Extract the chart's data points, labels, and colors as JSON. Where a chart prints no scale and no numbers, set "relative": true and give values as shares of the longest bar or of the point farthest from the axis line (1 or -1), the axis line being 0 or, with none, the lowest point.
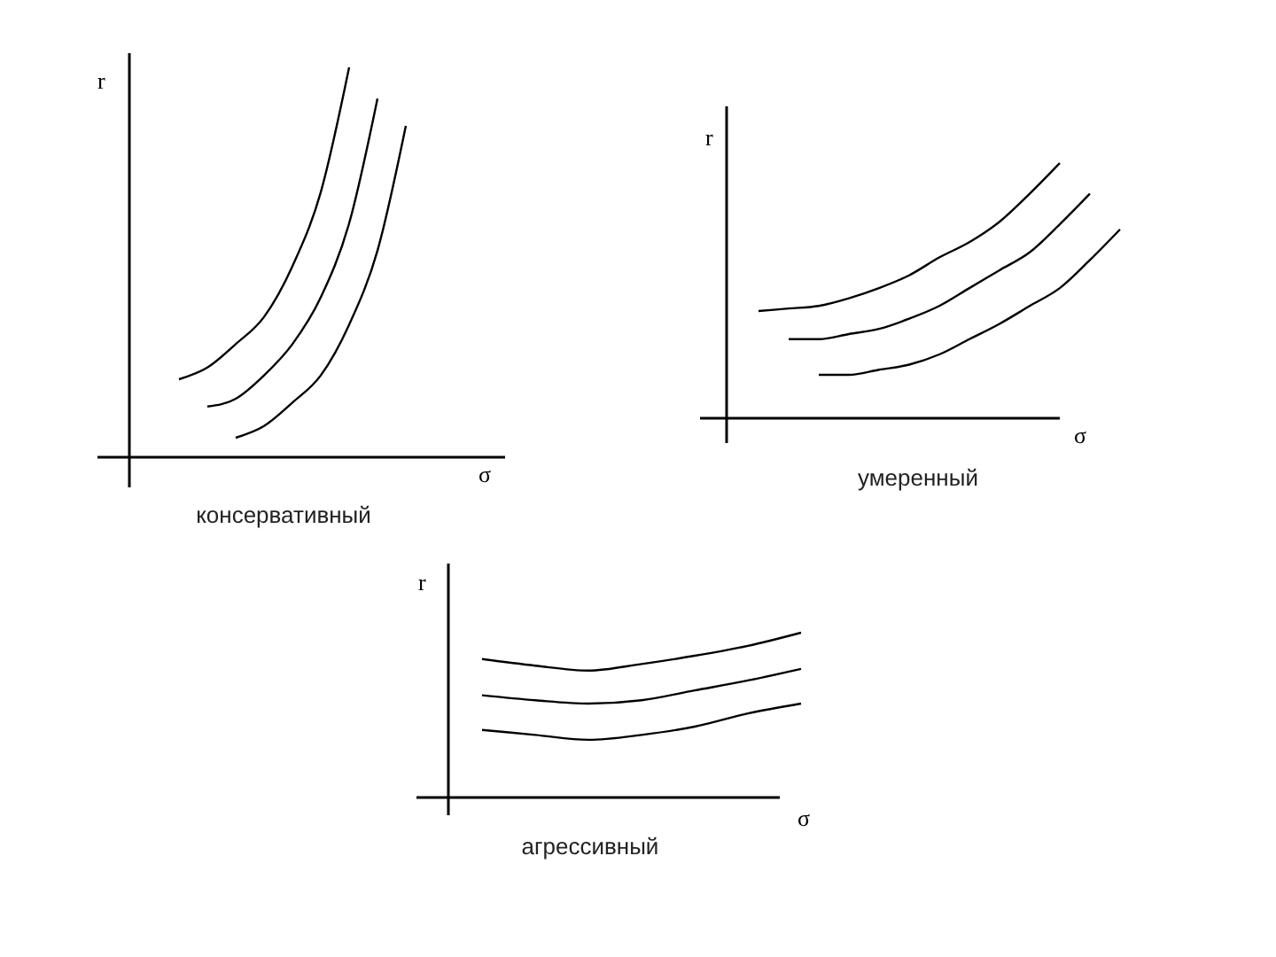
{
  "chart_data": [
    {
      "type": "line",
      "title": "консервативный",
      "xlabel": "σ",
      "ylabel": "r",
      "relative": true,
      "categories": [
        null,
        null,
        null,
        null,
        null,
        null,
        null,
        null,
        null,
        null,
        null,
        null,
        null
      ],
      "series": [
        {
          "color": "#000000",
          "values": [
            null,
            0.2,
            0.23,
            0.29,
            0.36,
            0.49,
            0.68,
            1,
            null,
            null,
            null,
            null,
            null
          ]
        },
        {
          "color": "#000000",
          "values": [
            null,
            null,
            0.13,
            0.15,
            0.21,
            0.29,
            0.41,
            0.6,
            0.92,
            null,
            null,
            null,
            null
          ]
        },
        {
          "color": "#000000",
          "values": [
            null,
            null,
            null,
            0.05,
            0.08,
            0.14,
            0.21,
            0.34,
            0.53,
            0.85,
            null,
            null,
            null
          ]
        }
      ]
    },
    {
      "type": "line",
      "title": "умеренный",
      "xlabel": "σ",
      "ylabel": "r",
      "relative": true,
      "categories": [
        null,
        null,
        null,
        null,
        null,
        null,
        null,
        null,
        null,
        null,
        null,
        null,
        null
      ],
      "series": [
        {
          "color": "#000000",
          "values": [
            0.42,
            0.43,
            0.44,
            0.47,
            0.51,
            0.56,
            0.63,
            0.69,
            0.77,
            0.88,
            1,
            null,
            null
          ]
        },
        {
          "color": "#000000",
          "values": [
            null,
            0.31,
            0.31,
            0.33,
            0.35,
            0.39,
            0.44,
            0.51,
            0.58,
            0.65,
            0.76,
            0.88,
            null
          ]
        },
        {
          "color": "#000000",
          "values": [
            null,
            null,
            0.17,
            0.17,
            0.19,
            0.21,
            0.25,
            0.31,
            0.37,
            0.44,
            0.51,
            0.62,
            0.74
          ]
        }
      ]
    },
    {
      "type": "line",
      "title": "агрессивный",
      "xlabel": "σ",
      "ylabel": "r",
      "relative": true,
      "categories": [
        null,
        null,
        null,
        null,
        null,
        null,
        null
      ],
      "series": [
        {
          "color": "#000000",
          "values": [
            0.84,
            0.8,
            0.77,
            0.81,
            0.86,
            0.92,
            1
          ]
        },
        {
          "color": "#000000",
          "values": [
            0.62,
            0.59,
            0.57,
            0.59,
            0.65,
            0.71,
            0.78
          ]
        },
        {
          "color": "#000000",
          "values": [
            0.41,
            0.38,
            0.35,
            0.38,
            0.43,
            0.51,
            0.57
          ]
        }
      ]
    }
  ]
}
